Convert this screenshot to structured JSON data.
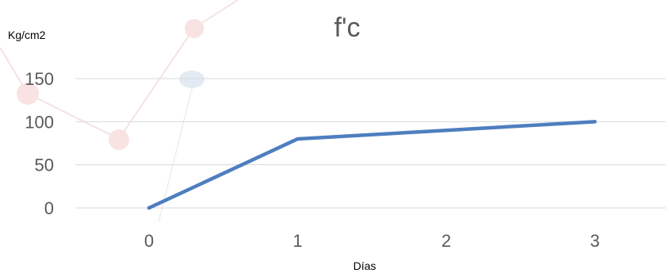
{
  "colors": {
    "series": "#4e7ec0",
    "gridline": "#d9d9d9",
    "tick_text": "#595959",
    "background_decoration_red": "#f6d4d4",
    "background_decoration_blue": "#dde6f2"
  },
  "chart_data": {
    "type": "line",
    "title": "f'c",
    "xlabel": "Días",
    "ylabel": "Kg/cm2",
    "categories": [
      "0",
      "1",
      "2",
      "3"
    ],
    "x": [
      0,
      1,
      2,
      3
    ],
    "series": [
      {
        "values": [
          0,
          80,
          90,
          100
        ]
      }
    ],
    "ylim": [
      0,
      150
    ],
    "yticks": [
      "0",
      "50",
      "100",
      "150"
    ],
    "grid": true,
    "legend": "none"
  }
}
